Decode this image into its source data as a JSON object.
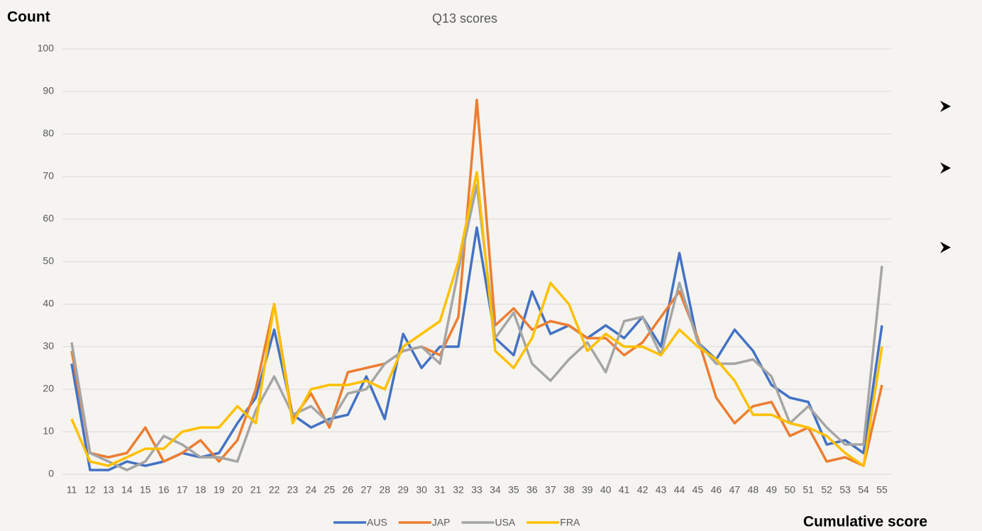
{
  "chart_data": {
    "type": "line",
    "title": "Q13 scores",
    "y_label": "Count",
    "x_label": "Cumulative score",
    "categories": [
      "11",
      "12",
      "13",
      "14",
      "15",
      "16",
      "17",
      "18",
      "19",
      "20",
      "21",
      "22",
      "23",
      "24",
      "25",
      "26",
      "27",
      "28",
      "29",
      "30",
      "31",
      "32",
      "33",
      "34",
      "35",
      "36",
      "37",
      "38",
      "39",
      "40",
      "41",
      "42",
      "43",
      "44",
      "45",
      "46",
      "47",
      "48",
      "49",
      "50",
      "51",
      "52",
      "53",
      "54",
      "55"
    ],
    "series": [
      {
        "name": "AUS",
        "color": "#4472c4",
        "values": [
          26,
          1,
          1,
          3,
          2,
          3,
          5,
          4,
          5,
          12,
          18,
          34,
          14,
          11,
          13,
          14,
          23,
          13,
          33,
          25,
          30,
          30,
          58,
          32,
          28,
          43,
          33,
          35,
          32,
          35,
          32,
          37,
          30,
          52,
          31,
          27,
          34,
          29,
          21,
          18,
          17,
          7,
          8,
          5,
          35
        ]
      },
      {
        "name": "JAP",
        "color": "#ed7d31",
        "values": [
          29,
          5,
          4,
          5,
          11,
          3,
          5,
          8,
          3,
          8,
          20,
          40,
          13,
          19,
          11,
          24,
          25,
          26,
          29,
          30,
          28,
          37,
          88,
          35,
          39,
          34,
          36,
          35,
          32,
          32,
          28,
          31,
          37,
          43,
          32,
          18,
          12,
          16,
          17,
          9,
          11,
          3,
          4,
          2,
          21
        ]
      },
      {
        "name": "USA",
        "color": "#a5a5a5",
        "values": [
          31,
          5,
          3,
          1,
          3,
          9,
          7,
          4,
          4,
          3,
          15,
          23,
          14,
          16,
          12,
          19,
          20,
          26,
          29,
          30,
          26,
          48,
          68,
          32,
          38,
          26,
          22,
          27,
          31,
          24,
          36,
          37,
          28,
          45,
          31,
          26,
          26,
          27,
          23,
          12,
          16,
          11,
          7,
          7,
          49
        ]
      },
      {
        "name": "FRA",
        "color": "#ffc000",
        "values": [
          13,
          3,
          2,
          4,
          6,
          6,
          10,
          11,
          11,
          16,
          12,
          40,
          12,
          20,
          21,
          21,
          22,
          20,
          30,
          33,
          36,
          50,
          71,
          29,
          25,
          32,
          45,
          40,
          29,
          33,
          30,
          30,
          28,
          34,
          30,
          27,
          22,
          14,
          14,
          12,
          11,
          9,
          5,
          2,
          30
        ]
      }
    ],
    "ylim": [
      0,
      100
    ],
    "yticks": [
      0,
      10,
      20,
      30,
      40,
      50,
      60,
      70,
      80,
      90,
      100
    ],
    "grid": true,
    "legend": "bottom"
  }
}
